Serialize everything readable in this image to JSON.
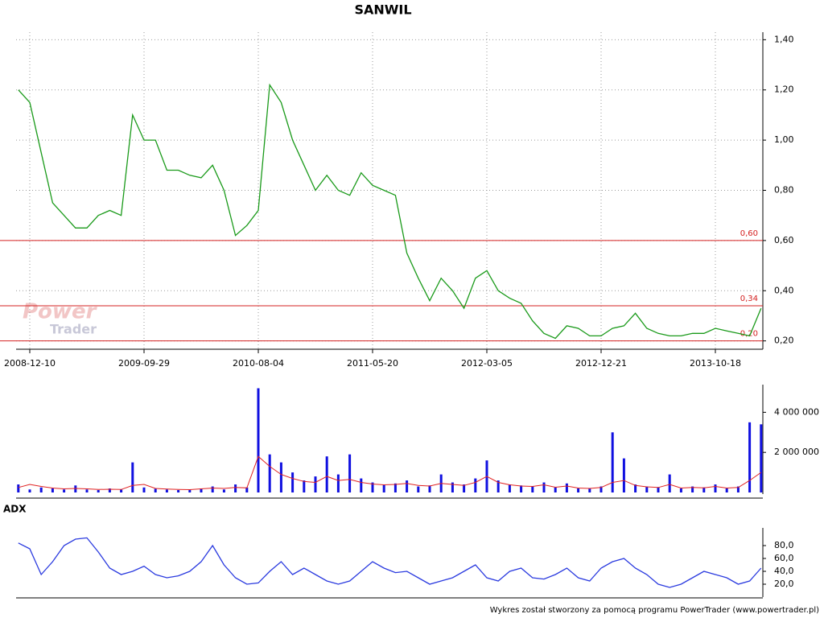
{
  "chart_data": [
    {
      "type": "line",
      "title": "SANWIL",
      "watermark": [
        "Power",
        "Trader"
      ],
      "color": "#1a9a1a",
      "categories": [
        null,
        "2008-12-10",
        null,
        null,
        null,
        null,
        null,
        null,
        null,
        null,
        null,
        "2009-09-29",
        null,
        null,
        null,
        null,
        null,
        null,
        null,
        null,
        null,
        "2010-08-04",
        null,
        null,
        null,
        null,
        null,
        null,
        null,
        null,
        null,
        "2011-05-20",
        null,
        null,
        null,
        null,
        null,
        null,
        null,
        null,
        null,
        "2012-03-05",
        null,
        null,
        null,
        null,
        null,
        null,
        null,
        null,
        null,
        "2012-12-21",
        null,
        null,
        null,
        null,
        null,
        null,
        null,
        null,
        null,
        "2013-10-18",
        null,
        null,
        null,
        null
      ],
      "values": [
        1.2,
        1.15,
        0.95,
        0.75,
        0.7,
        0.65,
        0.65,
        0.7,
        0.72,
        0.7,
        1.1,
        1.0,
        1.0,
        0.88,
        0.88,
        0.86,
        0.85,
        0.9,
        0.8,
        0.62,
        0.66,
        0.72,
        1.22,
        1.15,
        1.0,
        0.9,
        0.8,
        0.86,
        0.8,
        0.78,
        0.87,
        0.82,
        0.8,
        0.78,
        0.55,
        0.45,
        0.36,
        0.45,
        0.4,
        0.33,
        0.45,
        0.48,
        0.4,
        0.37,
        0.35,
        0.28,
        0.23,
        0.21,
        0.26,
        0.25,
        0.22,
        0.22,
        0.25,
        0.26,
        0.31,
        0.25,
        0.23,
        0.22,
        0.22,
        0.23,
        0.23,
        0.25,
        0.24,
        0.23,
        0.22,
        0.33
      ],
      "ylim": [
        0.17,
        1.43
      ],
      "yticks": [
        {
          "value": 0.2,
          "label": "0,20"
        },
        {
          "value": 0.4,
          "label": "0,40"
        },
        {
          "value": 0.6,
          "label": "0,60"
        },
        {
          "value": 0.8,
          "label": "0,80"
        },
        {
          "value": 1.0,
          "label": "1,00"
        },
        {
          "value": 1.2,
          "label": "1,20"
        },
        {
          "value": 1.4,
          "label": "1,40"
        }
      ],
      "hlines": [
        {
          "value": 0.6,
          "label": "0,60"
        },
        {
          "value": 0.34,
          "label": "0,34"
        },
        {
          "value": 0.2,
          "label": "0,20"
        }
      ],
      "hline_color": "#d42020",
      "grid": true
    },
    {
      "type": "bar",
      "color": "#1010e0",
      "ma_color": "#e02020",
      "values": [
        400000,
        150000,
        250000,
        200000,
        150000,
        350000,
        150000,
        120000,
        200000,
        150000,
        1500000,
        250000,
        180000,
        150000,
        120000,
        150000,
        200000,
        300000,
        150000,
        400000,
        250000,
        5200000,
        1900000,
        1500000,
        1000000,
        600000,
        800000,
        1800000,
        900000,
        1900000,
        700000,
        500000,
        400000,
        450000,
        600000,
        300000,
        350000,
        900000,
        500000,
        400000,
        700000,
        1600000,
        600000,
        400000,
        350000,
        300000,
        500000,
        250000,
        450000,
        200000,
        200000,
        300000,
        3000000,
        1700000,
        400000,
        300000,
        250000,
        900000,
        200000,
        300000,
        250000,
        400000,
        200000,
        300000,
        3500000,
        3400000
      ],
      "ma_values": [
        250000,
        400000,
        300000,
        220000,
        180000,
        200000,
        180000,
        150000,
        160000,
        150000,
        350000,
        400000,
        200000,
        170000,
        150000,
        140000,
        180000,
        220000,
        200000,
        250000,
        230000,
        1800000,
        1300000,
        900000,
        700000,
        550000,
        500000,
        800000,
        600000,
        650000,
        500000,
        420000,
        380000,
        400000,
        450000,
        350000,
        320000,
        450000,
        400000,
        350000,
        500000,
        800000,
        500000,
        380000,
        320000,
        300000,
        380000,
        260000,
        320000,
        220000,
        200000,
        250000,
        500000,
        600000,
        350000,
        280000,
        250000,
        400000,
        220000,
        250000,
        230000,
        300000,
        220000,
        250000,
        600000,
        1000000
      ],
      "ylim": [
        0,
        5300000
      ],
      "yticks": [
        {
          "value": 2000000,
          "label": "2 000 000"
        },
        {
          "value": 4000000,
          "label": "4 000 000"
        }
      ]
    },
    {
      "type": "line",
      "title": "ADX",
      "color": "#2a3adf",
      "values": [
        84,
        75,
        35,
        55,
        80,
        90,
        92,
        70,
        45,
        35,
        40,
        48,
        35,
        30,
        33,
        40,
        55,
        80,
        50,
        30,
        20,
        22,
        40,
        55,
        35,
        45,
        35,
        25,
        20,
        25,
        40,
        55,
        45,
        38,
        40,
        30,
        20,
        25,
        30,
        40,
        50,
        30,
        25,
        40,
        45,
        30,
        28,
        35,
        45,
        30,
        25,
        45,
        55,
        60,
        45,
        35,
        20,
        15,
        20,
        30,
        40,
        35,
        30,
        20,
        25,
        45
      ],
      "ylim": [
        0,
        105
      ],
      "yticks": [
        {
          "value": 20,
          "label": "20,0"
        },
        {
          "value": 40,
          "label": "40,0"
        },
        {
          "value": 60,
          "label": "60,0"
        },
        {
          "value": 80,
          "label": "80,0"
        }
      ]
    }
  ],
  "footer": "Wykres został stworzony za pomocą programu PowerTrader (www.powertrader.pl)"
}
